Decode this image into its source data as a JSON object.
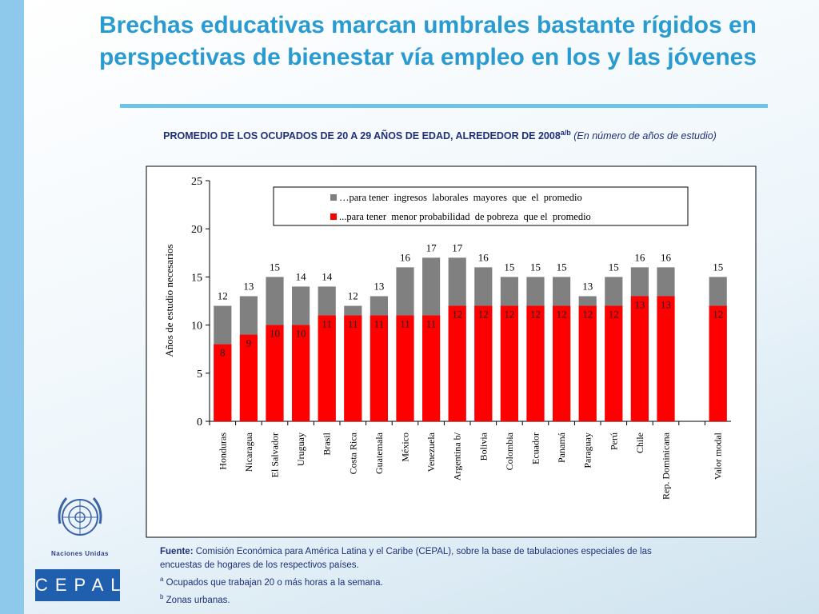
{
  "slide": {
    "title": "Brechas educativas marcan umbrales bastante rígidos en perspectivas de bienestar vía empleo en los y las jóvenes",
    "subtitle": "PROMEDIO DE LOS OCUPADOS DE 20 A 29 AÑOS DE EDAD, ALREDEDOR DE 2008",
    "subtitle_sup": "a/b",
    "subtitle_note": "(En número de años de estudio)",
    "source_label": "Fuente:",
    "source": "Comisión Económica para América Latina y el Caribe (CEPAL), sobre la base de tabulaciones especiales de las encuestas de hogares de los respectivos países.",
    "notes": [
      {
        "mark": "a",
        "text": "Ocupados que trabajan 20 o más horas a la semana."
      },
      {
        "mark": "b",
        "text": "Zonas urbanas."
      }
    ],
    "logo_un": "Naciones Unidas",
    "logo_cepal": "CEPAL"
  },
  "chart_data": {
    "type": "bar",
    "overlap": true,
    "ylabel": "Años de estudio necesarios",
    "categories": [
      "Honduras",
      "Nicaragua",
      "El Salvador",
      "Uruguay",
      "Brasil",
      "Costa Rica",
      "Guatemala",
      "México",
      "Venezuela",
      "Argentina b/",
      "Bolivia",
      "Colombia",
      "Ecuador",
      "Panamá",
      "Paraguay",
      "Perú",
      "Chile",
      "Rep. Dominicana",
      null,
      "Valor modal"
    ],
    "series": [
      {
        "name": "…para tener  ingresos  laborales  mayores  que  el  promedio",
        "color": "#808080",
        "values": [
          12,
          13,
          15,
          14,
          14,
          12,
          13,
          16,
          17,
          17,
          16,
          15,
          15,
          15,
          13,
          15,
          16,
          16,
          null,
          15
        ]
      },
      {
        "name": "...para tener  menor probabilidad  de pobreza  que el  promedio",
        "color": "#ff0000",
        "values": [
          8,
          9,
          10,
          10,
          11,
          11,
          11,
          11,
          11,
          12,
          12,
          12,
          12,
          12,
          12,
          12,
          13,
          13,
          null,
          12
        ]
      }
    ],
    "ylim": [
      0,
      25
    ],
    "yticks": [
      0,
      5,
      10,
      15,
      20,
      25
    ],
    "legend": "top-right"
  }
}
